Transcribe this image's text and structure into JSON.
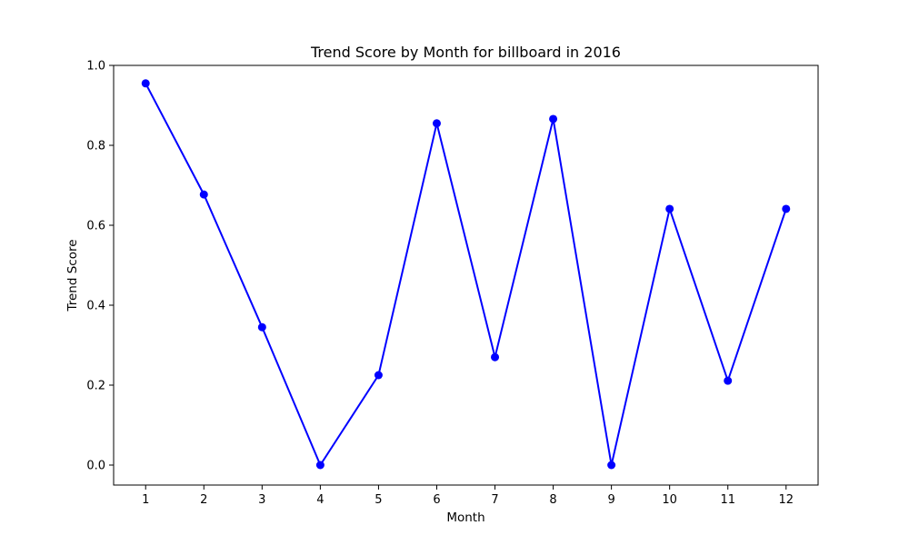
{
  "chart_data": {
    "type": "line",
    "title": "Trend Score by Month for billboard in 2016",
    "xlabel": "Month",
    "ylabel": "Trend Score",
    "x": [
      1,
      2,
      3,
      4,
      5,
      6,
      7,
      8,
      9,
      10,
      11,
      12
    ],
    "x_tick_labels": [
      "1",
      "2",
      "3",
      "4",
      "5",
      "6",
      "7",
      "8",
      "9",
      "10",
      "11",
      "12"
    ],
    "y_ticks": [
      0.0,
      0.2,
      0.4,
      0.6,
      0.8,
      1.0
    ],
    "y_tick_labels": [
      "0.0",
      "0.2",
      "0.4",
      "0.6",
      "0.8",
      "1.0"
    ],
    "xlim": [
      0.45,
      12.55
    ],
    "ylim": [
      -0.05,
      1.0
    ],
    "grid": false,
    "legend": "none",
    "series": [
      {
        "values": [
          0.955,
          0.677,
          0.345,
          0.0,
          0.225,
          0.855,
          0.27,
          0.866,
          0.0,
          0.641,
          0.211,
          0.641
        ],
        "color": "#0000ff",
        "marker": "circle"
      }
    ]
  }
}
